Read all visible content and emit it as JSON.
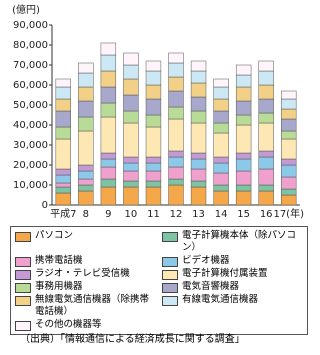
{
  "chart_data": {
    "type": "bar",
    "stacked": true,
    "y_label": "(億円)",
    "categories": [
      "平成7",
      "8",
      "9",
      "10",
      "11",
      "12",
      "13",
      "14",
      "15",
      "16",
      "17(年)"
    ],
    "ylim": [
      0,
      90000
    ],
    "yticks": [
      0,
      {
        "value": 10000,
        "label": "10,000"
      },
      {
        "value": 20000,
        "label": "20,000"
      },
      {
        "value": 30000,
        "label": "30,000"
      },
      {
        "value": 40000,
        "label": "40,000"
      },
      {
        "value": 50000,
        "label": "50,000"
      },
      {
        "value": 60000,
        "label": "60,000"
      },
      {
        "value": 70000,
        "label": "70,000"
      },
      {
        "value": 80000,
        "label": "80,000"
      },
      {
        "value": 90000,
        "label": "90,000"
      }
    ],
    "series": [
      {
        "name": "パソコン",
        "color": "#f4a84a",
        "values": [
          6000,
          7000,
          9000,
          9000,
          9000,
          10000,
          9000,
          7000,
          7000,
          7000,
          5000
        ]
      },
      {
        "name": "電子計算機本体（除パソコン）",
        "color": "#7cc4a4",
        "values": [
          3000,
          3000,
          4000,
          3000,
          3000,
          3000,
          3000,
          3000,
          3000,
          3000,
          3000
        ]
      },
      {
        "name": "携帯電話機",
        "color": "#f0a0cc",
        "values": [
          2000,
          3000,
          6000,
          5000,
          5000,
          6000,
          6000,
          6000,
          7000,
          8000,
          6000
        ]
      },
      {
        "name": "ビデオ機器",
        "color": "#8cc8e8",
        "values": [
          4000,
          4000,
          4000,
          4000,
          4000,
          5000,
          5000,
          5000,
          6000,
          6000,
          6000
        ]
      },
      {
        "name": "ラジオ・テレビ受信機",
        "color": "#c49ad4",
        "values": [
          3000,
          3000,
          3000,
          3000,
          3000,
          3000,
          3000,
          3000,
          3000,
          3000,
          3000
        ]
      },
      {
        "name": "電子計算機付属装置",
        "color": "#fde8b4",
        "values": [
          15000,
          17000,
          18000,
          17000,
          15000,
          16000,
          15000,
          12000,
          14000,
          14000,
          10000
        ]
      },
      {
        "name": "事務用機器",
        "color": "#b8dc98",
        "values": [
          6000,
          7000,
          7000,
          6000,
          6000,
          6000,
          6000,
          5000,
          5000,
          5000,
          4000
        ]
      },
      {
        "name": "電気音響機器",
        "color": "#a8a8cc",
        "values": [
          8000,
          8000,
          8000,
          8000,
          8000,
          8000,
          7000,
          6000,
          7000,
          7000,
          6000
        ]
      },
      {
        "name": "無線電気通信機器（除携帯電話機）",
        "color": "#f2d088",
        "values": [
          6000,
          7000,
          8000,
          8000,
          7000,
          7000,
          7000,
          6000,
          7000,
          7000,
          5000
        ]
      },
      {
        "name": "有線電気通信機器",
        "color": "#cce8f4",
        "values": [
          6000,
          7000,
          8000,
          7000,
          7000,
          7000,
          6000,
          6000,
          6000,
          7000,
          5000
        ]
      },
      {
        "name": "その他の機器等",
        "color": "#fff4fa",
        "values": [
          4000,
          5000,
          6000,
          6000,
          5000,
          5000,
          5000,
          4000,
          5000,
          5000,
          4000
        ]
      }
    ],
    "source": "（出典）「情報通信による経済成長に関する調査」"
  }
}
